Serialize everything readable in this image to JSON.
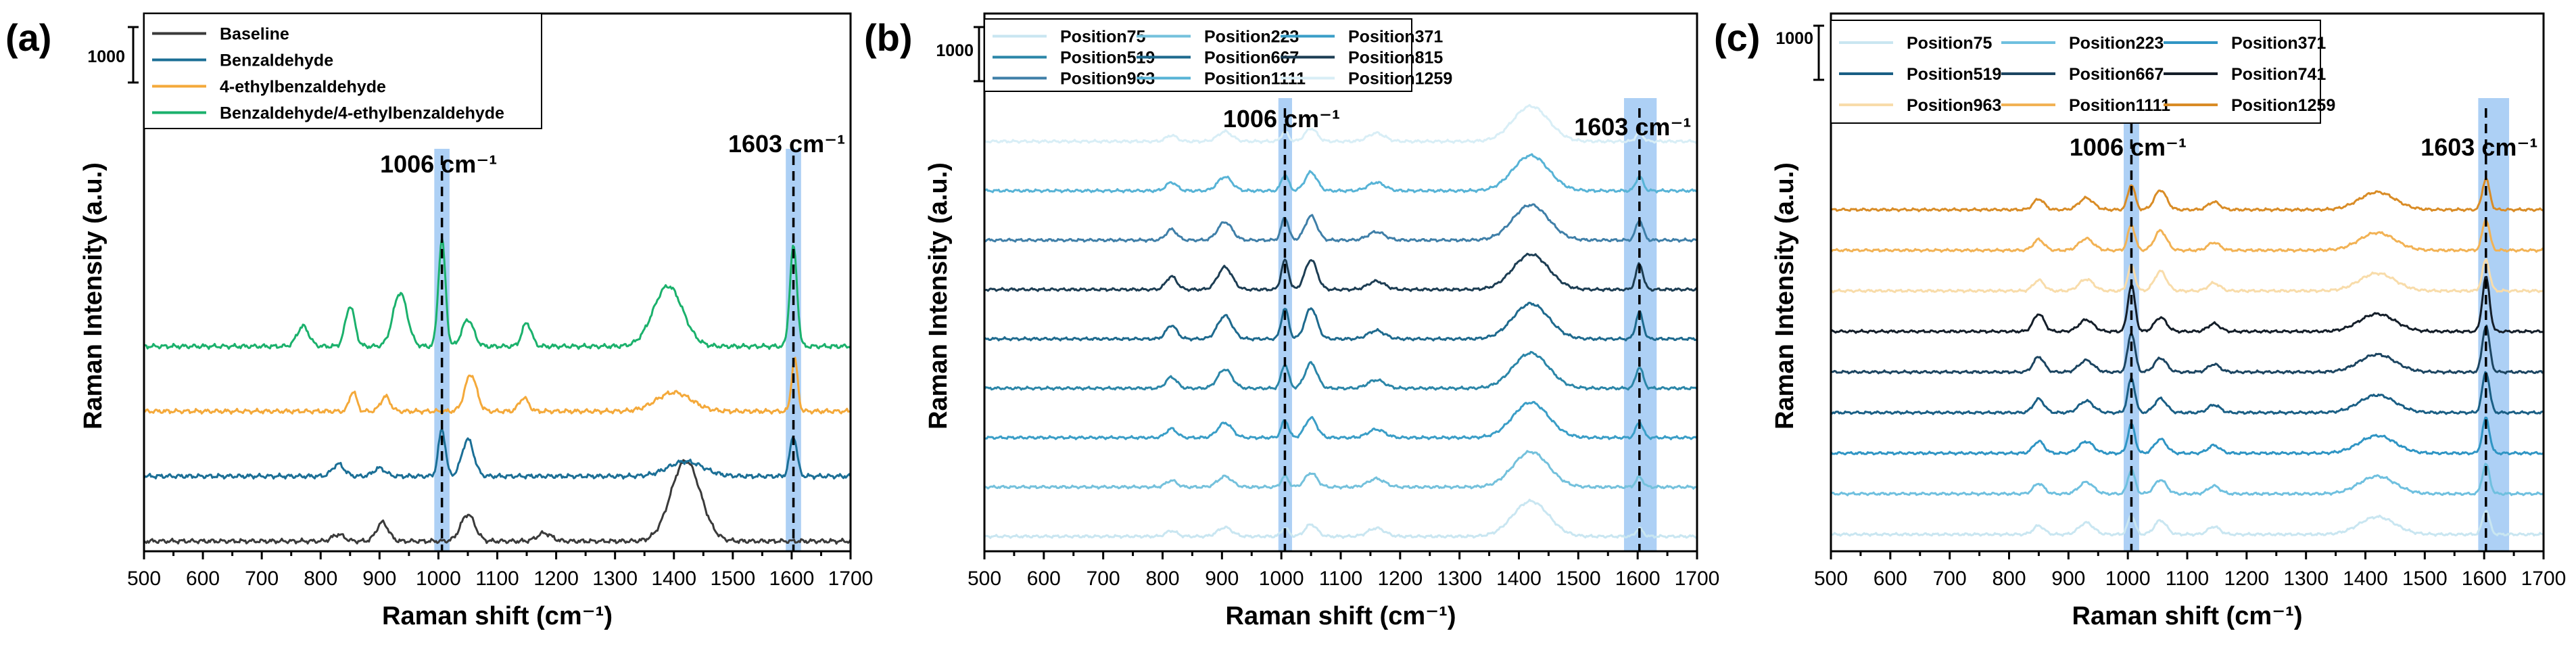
{
  "chart_data": [
    {
      "type": "line",
      "panel_label": "(a)",
      "xlabel": "Raman shift (cm⁻¹)",
      "ylabel": "Raman Intensity (a.u.)",
      "xlim": [
        500,
        1700
      ],
      "xticks": [
        500,
        600,
        700,
        800,
        900,
        1000,
        1100,
        1200,
        1300,
        1400,
        1500,
        1600,
        1700
      ],
      "scale_bar_label": "1000",
      "scale_bar_value": 1000,
      "highlight_bands": [
        {
          "center": 1006,
          "from": 993,
          "to": 1019,
          "label": "1006 cm⁻¹"
        },
        {
          "center": 1603,
          "from": 1590,
          "to": 1616,
          "label": "1603 cm⁻¹"
        }
      ],
      "series": [
        {
          "name": "Baseline",
          "color": "#3a3a3a",
          "offset": 0,
          "peaks": [
            [
              905,
              28,
              10
            ],
            [
              1050,
              40,
              12
            ],
            [
              1420,
              120,
              25
            ],
            [
              830,
              10,
              10
            ],
            [
              1180,
              12,
              12
            ]
          ]
        },
        {
          "name": "Benzaldehyde",
          "color": "#1b6f96",
          "offset": 1,
          "peaks": [
            [
              1006,
              70,
              6
            ],
            [
              1603,
              60,
              6
            ],
            [
              1050,
              55,
              10
            ],
            [
              830,
              18,
              10
            ],
            [
              900,
              12,
              10
            ],
            [
              1420,
              22,
              30
            ]
          ]
        },
        {
          "name": "4-ethylbenzaldehyde",
          "color": "#f4a93a",
          "offset": 2,
          "peaks": [
            [
              855,
              30,
              6
            ],
            [
              910,
              22,
              8
            ],
            [
              1055,
              55,
              10
            ],
            [
              1145,
              20,
              8
            ],
            [
              1400,
              28,
              30
            ],
            [
              1605,
              80,
              5
            ]
          ]
        },
        {
          "name": "Benzaldehyde/4-ethylbenzaldehyde",
          "color": "#1bb16c",
          "offset": 3,
          "peaks": [
            [
              1006,
              160,
              6
            ],
            [
              1603,
              150,
              6
            ],
            [
              770,
              30,
              10
            ],
            [
              850,
              60,
              8
            ],
            [
              935,
              80,
              12
            ],
            [
              1050,
              40,
              10
            ],
            [
              1150,
              35,
              8
            ],
            [
              1390,
              90,
              25
            ]
          ]
        }
      ]
    },
    {
      "type": "line",
      "panel_label": "(b)",
      "xlabel": "Raman shift (cm⁻¹)",
      "ylabel": "Raman Intensity (a.u.)",
      "xlim": [
        500,
        1700
      ],
      "xticks": [
        500,
        600,
        700,
        800,
        900,
        1000,
        1100,
        1200,
        1300,
        1400,
        1500,
        1600,
        1700
      ],
      "scale_bar_label": "1000",
      "scale_bar_value": 1000,
      "highlight_bands": [
        {
          "center": 1006,
          "from": 995,
          "to": 1018,
          "label": "1006 cm⁻¹"
        },
        {
          "center": 1603,
          "from": 1577,
          "to": 1632,
          "label": "1603 cm⁻¹"
        }
      ],
      "series": [
        {
          "name": "Position75",
          "color": "#c9e6f1"
        },
        {
          "name": "Position223",
          "color": "#74c1dc"
        },
        {
          "name": "Position371",
          "color": "#3a9ec7"
        },
        {
          "name": "Position519",
          "color": "#2b86a8"
        },
        {
          "name": "Position667",
          "color": "#1e6a8e"
        },
        {
          "name": "Position815",
          "color": "#1c3d53"
        },
        {
          "name": "Position963",
          "color": "#3f7fa8"
        },
        {
          "name": "Position1111",
          "color": "#57b3d6"
        },
        {
          "name": "Position1259",
          "color": "#d8eef6"
        }
      ]
    },
    {
      "type": "line",
      "panel_label": "(c)",
      "xlabel": "Raman shift (cm⁻¹)",
      "ylabel": "Raman Intensity (a.u.)",
      "xlim": [
        500,
        1700
      ],
      "xticks": [
        500,
        600,
        700,
        800,
        900,
        1000,
        1100,
        1200,
        1300,
        1400,
        1500,
        1600,
        1700
      ],
      "scale_bar_label": "1000",
      "scale_bar_value": 1000,
      "highlight_bands": [
        {
          "center": 1006,
          "from": 993,
          "to": 1019,
          "label": "1006 cm⁻¹"
        },
        {
          "center": 1603,
          "from": 1590,
          "to": 1642,
          "label": "1603 cm⁻¹"
        }
      ],
      "series": [
        {
          "name": "Position75",
          "color": "#c9e6f1"
        },
        {
          "name": "Position223",
          "color": "#6fc0df"
        },
        {
          "name": "Position371",
          "color": "#2f95c4"
        },
        {
          "name": "Position519",
          "color": "#1a5f85"
        },
        {
          "name": "Position667",
          "color": "#1c4561"
        },
        {
          "name": "Position741",
          "color": "#141e29"
        },
        {
          "name": "Position963",
          "color": "#f8dcaa"
        },
        {
          "name": "Position1111",
          "color": "#f2b254"
        },
        {
          "name": "Position1259",
          "color": "#d98c26"
        }
      ]
    }
  ]
}
